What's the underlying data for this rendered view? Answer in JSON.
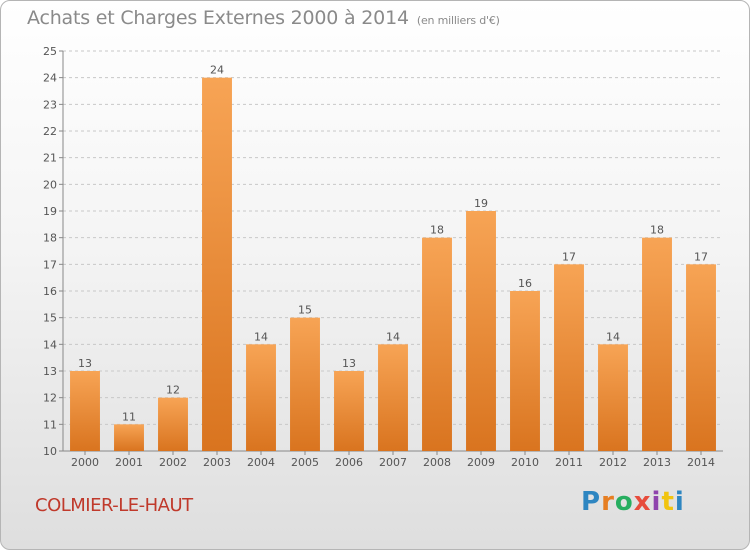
{
  "header": {
    "title": "Achats et Charges Externes 2000 à 2014",
    "unit_note": "(en milliers d'€)"
  },
  "footer": {
    "place_name": "COLMIER-LE-HAUT",
    "logo_text": "Proxiti"
  },
  "colors": {
    "bar_top": "#f7a455",
    "bar_bottom": "#d9741f",
    "grid": "#c8c8c8",
    "place_name": "#c0392b"
  },
  "chart_data": {
    "type": "bar",
    "title": "Achats et Charges Externes 2000 à 2014",
    "subtitle": "(en milliers d'€)",
    "xlabel": "",
    "ylabel": "",
    "categories": [
      "2000",
      "2001",
      "2002",
      "2003",
      "2004",
      "2005",
      "2006",
      "2007",
      "2008",
      "2009",
      "2010",
      "2011",
      "2012",
      "2013",
      "2014"
    ],
    "values": [
      13,
      11,
      12,
      24,
      14,
      15,
      13,
      14,
      18,
      19,
      16,
      17,
      14,
      18,
      17
    ],
    "ylim": [
      10,
      25
    ],
    "yticks": [
      10,
      11,
      12,
      13,
      14,
      15,
      16,
      17,
      18,
      19,
      20,
      21,
      22,
      23,
      24,
      25
    ],
    "grid": true,
    "legend": "none"
  }
}
